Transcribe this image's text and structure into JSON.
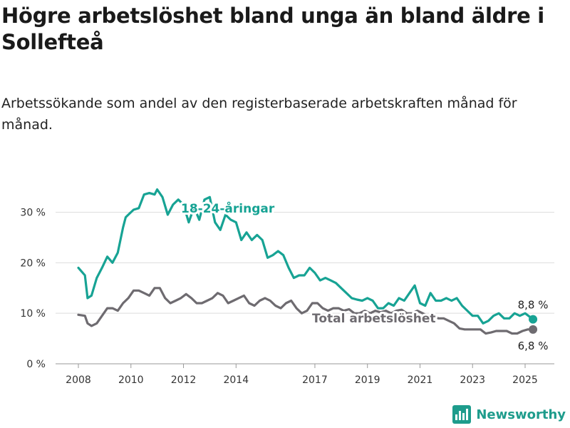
{
  "title": "Högre arbetslöshet bland unga än bland äldre i Sollefteå",
  "subtitle": "Arbetssökande som andel av den registerbaserade arbetskraften månad för månad.",
  "brand": "Newsworthy",
  "colors": {
    "youth": "#17a394",
    "total": "#6e6b70",
    "grid": "#dddddd",
    "brand": "#1e9c8c"
  },
  "chart_data": {
    "type": "line",
    "title": "Högre arbetslöshet bland unga än bland äldre i Sollefteå",
    "subtitle": "Arbetssökande som andel av den registerbaserade arbetskraften månad för månad.",
    "xlabel": "",
    "ylabel": "",
    "xlim": [
      2007.6,
      2025.9
    ],
    "ylim": [
      0,
      36
    ],
    "grid": true,
    "legend": "inline labels",
    "x_ticks": [
      2008,
      2010,
      2012,
      2014,
      2017,
      2019,
      2021,
      2023,
      2025
    ],
    "x_tick_labels": [
      "2008",
      "2010",
      "2012",
      "2014",
      "2017",
      "2019",
      "2021",
      "2023",
      "2025"
    ],
    "y_ticks": [
      0,
      10,
      20,
      30
    ],
    "y_tick_labels": [
      "0 %",
      "10 %",
      "20 %",
      "30 %"
    ],
    "series": [
      {
        "name": "18-24-åringar",
        "end_label": "8,8 %",
        "x": [
          2008.0,
          2008.25,
          2008.35,
          2008.5,
          2008.7,
          2008.9,
          2009.1,
          2009.3,
          2009.5,
          2009.7,
          2009.8,
          2009.9,
          2010.1,
          2010.3,
          2010.5,
          2010.7,
          2010.9,
          2011.0,
          2011.2,
          2011.4,
          2011.6,
          2011.8,
          2012.0,
          2012.2,
          2012.4,
          2012.6,
          2012.8,
          2013.0,
          2013.2,
          2013.4,
          2013.6,
          2013.8,
          2014.0,
          2014.2,
          2014.4,
          2014.6,
          2014.8,
          2015.0,
          2015.2,
          2015.4,
          2015.6,
          2015.8,
          2016.0,
          2016.2,
          2016.4,
          2016.6,
          2016.8,
          2017.0,
          2017.2,
          2017.4,
          2017.6,
          2017.8,
          2018.0,
          2018.2,
          2018.4,
          2018.6,
          2018.8,
          2019.0,
          2019.2,
          2019.4,
          2019.6,
          2019.8,
          2020.0,
          2020.2,
          2020.4,
          2020.6,
          2020.8,
          2021.0,
          2021.2,
          2021.4,
          2021.6,
          2021.8,
          2022.0,
          2022.2,
          2022.4,
          2022.6,
          2022.8,
          2023.0,
          2023.2,
          2023.4,
          2023.6,
          2023.8,
          2024.0,
          2024.2,
          2024.4,
          2024.6,
          2024.8,
          2025.0,
          2025.2,
          2025.3
        ],
        "y": [
          19,
          17.5,
          13,
          13.5,
          17,
          19,
          21.2,
          20,
          22,
          27,
          29,
          29.5,
          30.5,
          30.8,
          33.5,
          33.8,
          33.5,
          34.5,
          33,
          29.5,
          31.5,
          32.5,
          31.5,
          28,
          31,
          28.5,
          32.5,
          33,
          28,
          26.5,
          29.5,
          28.5,
          28,
          24.5,
          26,
          24.5,
          25.5,
          24.5,
          21,
          21.5,
          22.3,
          21.5,
          19,
          17,
          17.5,
          17.5,
          19,
          18,
          16.5,
          17,
          16.5,
          16,
          15,
          14,
          13,
          12.7,
          12.5,
          13,
          12.5,
          11,
          11,
          12,
          11.5,
          13,
          12.5,
          14,
          15.5,
          12,
          11.5,
          14,
          12.5,
          12.5,
          13,
          12.5,
          13,
          11.5,
          10.5,
          9.5,
          9.5,
          8,
          8.5,
          9.5,
          10,
          9,
          9,
          10,
          9.5,
          10,
          9.2,
          8.8
        ]
      },
      {
        "name": "Total arbetslöshet",
        "end_label": "6,8 %",
        "x": [
          2008.0,
          2008.25,
          2008.35,
          2008.5,
          2008.7,
          2008.9,
          2009.1,
          2009.3,
          2009.5,
          2009.7,
          2009.9,
          2010.1,
          2010.3,
          2010.5,
          2010.7,
          2010.9,
          2011.1,
          2011.3,
          2011.5,
          2011.7,
          2011.9,
          2012.1,
          2012.3,
          2012.5,
          2012.7,
          2012.9,
          2013.1,
          2013.3,
          2013.5,
          2013.7,
          2013.9,
          2014.1,
          2014.3,
          2014.5,
          2014.7,
          2014.9,
          2015.1,
          2015.3,
          2015.5,
          2015.7,
          2015.9,
          2016.1,
          2016.3,
          2016.5,
          2016.7,
          2016.9,
          2017.1,
          2017.3,
          2017.5,
          2017.7,
          2017.9,
          2018.1,
          2018.3,
          2018.5,
          2018.7,
          2018.9,
          2019.1,
          2019.3,
          2019.5,
          2019.7,
          2019.9,
          2020.1,
          2020.3,
          2020.5,
          2020.7,
          2020.9,
          2021.1,
          2021.3,
          2021.5,
          2021.7,
          2021.9,
          2022.1,
          2022.3,
          2022.5,
          2022.7,
          2022.9,
          2023.1,
          2023.3,
          2023.5,
          2023.7,
          2023.9,
          2024.1,
          2024.3,
          2024.5,
          2024.7,
          2024.9,
          2025.1,
          2025.3
        ],
        "y": [
          9.7,
          9.5,
          8,
          7.5,
          8,
          9.5,
          11,
          11,
          10.5,
          12,
          13,
          14.5,
          14.5,
          14,
          13.5,
          15,
          15,
          13,
          12,
          12.5,
          13,
          13.8,
          13,
          12,
          12,
          12.5,
          13,
          14,
          13.5,
          12,
          12.5,
          13,
          13.5,
          12,
          11.5,
          12.5,
          13,
          12.5,
          11.5,
          11,
          12,
          12.5,
          11,
          10,
          10.5,
          12,
          12,
          11,
          10.5,
          11,
          11,
          10.5,
          10.8,
          10,
          10,
          10.5,
          10,
          10.5,
          10.2,
          10.5,
          10,
          10.5,
          10.7,
          10,
          10,
          10.5,
          10,
          9.5,
          9.5,
          9,
          9,
          8.5,
          8,
          7,
          6.8,
          6.8,
          6.8,
          6.8,
          6,
          6.2,
          6.5,
          6.5,
          6.5,
          6,
          6,
          6.5,
          6.8,
          6.8
        ]
      }
    ]
  }
}
